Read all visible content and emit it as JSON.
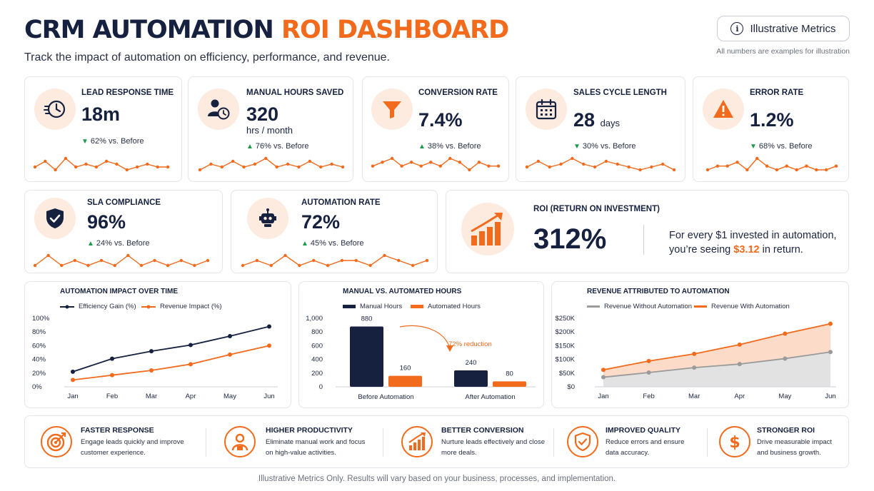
{
  "header": {
    "title_main": "CRM AUTOMATION",
    "title_accent": "ROI DASHBOARD",
    "subtitle": "Track the impact of automation on efficiency, performance, and revenue.",
    "illustrative_button": "Illustrative Metrics",
    "illustrative_icon": "info-icon",
    "illustrative_note": "All numbers are examples for illustration"
  },
  "colors": {
    "accent": "#f26a1b",
    "navy": "#16213f",
    "positive": "#1e9a4c",
    "icon_bg": "#fdebe0"
  },
  "kpis": [
    {
      "label": "LEAD RESPONSE TIME",
      "value": "18m",
      "unit": "",
      "delta": "62% vs. Before",
      "direction": "down",
      "icon": "clock-icon",
      "sparkline": [
        5,
        7,
        4,
        8,
        5,
        6,
        5,
        7,
        6,
        4,
        5,
        6,
        5,
        5
      ]
    },
    {
      "label": "MANUAL HOURS SAVED",
      "value": "320",
      "unit": "hrs / month",
      "delta": "76% vs. Before",
      "direction": "up",
      "icon": "user-clock-icon",
      "sparkline": [
        4,
        6,
        5,
        7,
        5,
        6,
        8,
        5,
        6,
        5,
        7,
        5,
        6,
        5
      ]
    },
    {
      "label": "CONVERSION RATE",
      "value": "7.4%",
      "unit": "",
      "delta": "38% vs. Before",
      "direction": "up",
      "icon": "funnel-icon",
      "sparkline": [
        5,
        6,
        7,
        5,
        6,
        5,
        6,
        5,
        7,
        6,
        4,
        6,
        5,
        5
      ]
    },
    {
      "label": "SALES CYCLE LENGTH",
      "value": "28",
      "unit": "days",
      "delta": "30% vs. Before",
      "direction": "down",
      "icon": "calendar-icon",
      "sparkline": [
        5,
        7,
        5,
        6,
        8,
        6,
        5,
        7,
        6,
        5,
        4,
        5,
        6,
        4
      ]
    },
    {
      "label": "ERROR RATE",
      "value": "1.2%",
      "unit": "",
      "delta": "68% vs. Before",
      "direction": "down",
      "icon": "warning-icon",
      "sparkline": [
        5,
        6,
        6,
        7,
        5,
        8,
        6,
        5,
        6,
        5,
        6,
        5,
        5,
        6
      ]
    },
    {
      "label": "SLA COMPLIANCE",
      "value": "96%",
      "unit": "",
      "delta": "24% vs. Before",
      "direction": "up",
      "icon": "shield-check-icon",
      "sparkline": [
        5,
        7,
        5,
        6,
        5,
        6,
        5,
        7,
        5,
        6,
        5,
        6,
        5,
        6
      ]
    },
    {
      "label": "AUTOMATION RATE",
      "value": "72%",
      "unit": "",
      "delta": "45% vs. Before",
      "direction": "up",
      "icon": "robot-icon",
      "sparkline": [
        5,
        6,
        5,
        7,
        5,
        6,
        5,
        6,
        6,
        5,
        7,
        6,
        5,
        6
      ]
    }
  ],
  "roi": {
    "title": "ROI (RETURN ON INVESTMENT)",
    "value": "312%",
    "text_before": "For every $1 invested in automation, you’re seeing",
    "highlight": "$3.12",
    "text_after": "in return.",
    "icon": "growth-chart-icon"
  },
  "chart_data": [
    {
      "type": "line",
      "title": "AUTOMATION IMPACT OVER TIME",
      "x": [
        "Jan",
        "Feb",
        "Mar",
        "Apr",
        "May",
        "Jun"
      ],
      "ylim": [
        0,
        100
      ],
      "yticks": [
        "100%",
        "80%",
        "60%",
        "40%",
        "20%",
        "0%"
      ],
      "series": [
        {
          "name": "Efficiency Gain (%)",
          "values": [
            22,
            41,
            52,
            61,
            74,
            88
          ],
          "color": "#16213f"
        },
        {
          "name": "Revenue Impact (%)",
          "values": [
            10,
            17,
            24,
            33,
            47,
            60
          ],
          "color": "#f26a1b"
        }
      ],
      "legend": "top"
    },
    {
      "type": "bar",
      "title": "MANUAL VS. AUTOMATED HOURS",
      "categories": [
        "Before Automation",
        "After Automation"
      ],
      "ylim": [
        0,
        1000
      ],
      "yticks": [
        "1,000",
        "800",
        "600",
        "400",
        "200",
        "0"
      ],
      "series": [
        {
          "name": "Manual Hours",
          "values": [
            880,
            240
          ],
          "color": "#16213f"
        },
        {
          "name": "Automated Hours",
          "values": [
            160,
            80
          ],
          "color": "#f26a1b"
        }
      ],
      "annotation": "72% reduction",
      "legend": "top"
    },
    {
      "type": "area",
      "title": "REVENUE ATTRIBUTED TO AUTOMATION",
      "x": [
        "Jan",
        "Feb",
        "Mar",
        "Apr",
        "May",
        "Jun"
      ],
      "ylim": [
        0,
        250
      ],
      "yticks": [
        "$250K",
        "$200K",
        "$150K",
        "$100K",
        "$50K",
        "$0"
      ],
      "series": [
        {
          "name": "Revenue Without Automation",
          "values": [
            35,
            52,
            70,
            83,
            103,
            127
          ],
          "color": "#9a9a9a"
        },
        {
          "name": "Revenue With Automation",
          "values": [
            62,
            94,
            120,
            154,
            194,
            230
          ],
          "color": "#f26a1b"
        }
      ],
      "legend": "top"
    }
  ],
  "benefits": [
    {
      "title": "FASTER RESPONSE",
      "desc": "Engage leads quickly and improve customer experience.",
      "icon": "target-icon"
    },
    {
      "title": "HIGHER PRODUCTIVITY",
      "desc": "Eliminate manual work and focus on high-value activities.",
      "icon": "person-icon"
    },
    {
      "title": "BETTER CONVERSION",
      "desc": "Nurture leads effectively and close more deals.",
      "icon": "bar-growth-icon"
    },
    {
      "title": "IMPROVED QUALITY",
      "desc": "Reduce errors and ensure data accuracy.",
      "icon": "shield-check-icon"
    },
    {
      "title": "STRONGER ROI",
      "desc": "Drive measurable impact and business growth.",
      "icon": "dollar-icon"
    }
  ],
  "footer": "Illustrative Metrics Only. Results will vary based on your business, processes, and implementation."
}
